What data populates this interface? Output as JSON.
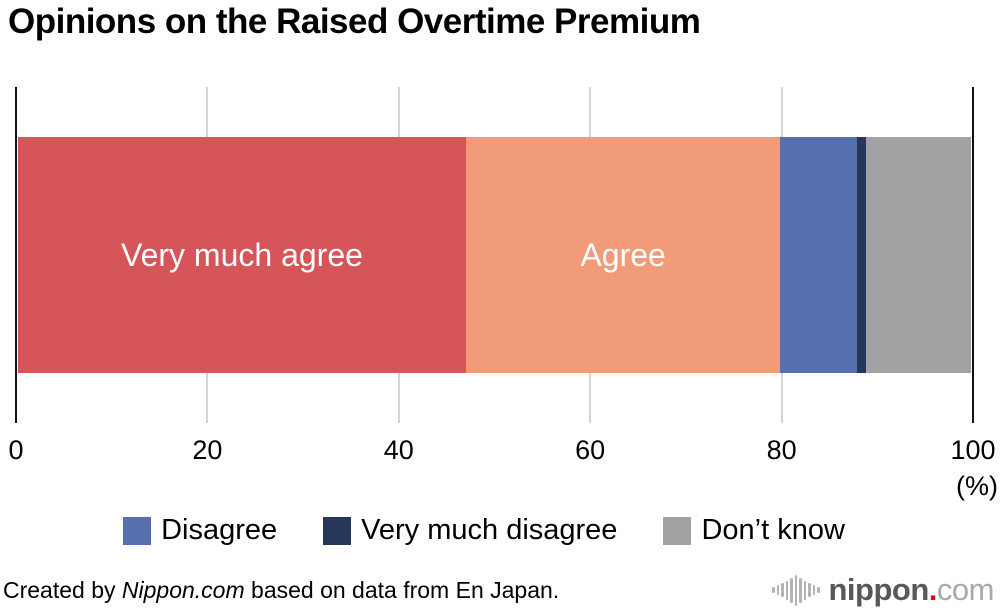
{
  "title": "Opinions on the Raised Overtime Premium",
  "chart_data": {
    "type": "bar",
    "stacked": true,
    "orientation": "horizontal",
    "title": "Opinions on the Raised Overtime Premium",
    "xlabel": "",
    "ylabel": "",
    "x_unit": "(%)",
    "xlim": [
      0,
      100
    ],
    "x_ticks": [
      0,
      20,
      40,
      60,
      80,
      100
    ],
    "grid": true,
    "legend_position": "bottom",
    "series": [
      {
        "name": "Very much agree",
        "value": 47,
        "color": "#d65559",
        "show_label": true
      },
      {
        "name": "Agree",
        "value": 33,
        "color": "#f29b79",
        "show_label": true
      },
      {
        "name": "Disagree",
        "value": 8,
        "color": "#5570ac",
        "show_label": false
      },
      {
        "name": "Very much disagree",
        "value": 1,
        "color": "#273759",
        "show_label": false
      },
      {
        "name": "Don’t know",
        "value": 11,
        "color": "#a3a3a3",
        "show_label": false
      }
    ]
  },
  "legend": {
    "items": [
      {
        "label": "Disagree",
        "color": "#5570ac"
      },
      {
        "label": "Very much disagree",
        "color": "#273759"
      },
      {
        "label": "Don’t know",
        "color": "#a3a3a3"
      }
    ]
  },
  "footer": {
    "credit_prefix": "Created by ",
    "credit_source": "Nippon.com",
    "credit_suffix": " based on data from En Japan.",
    "logo": {
      "name": "nippon",
      "dot": ".",
      "tld": "com",
      "wave_bars": [
        6,
        10,
        14,
        19,
        25,
        31,
        25,
        19,
        14,
        10,
        6
      ]
    }
  }
}
